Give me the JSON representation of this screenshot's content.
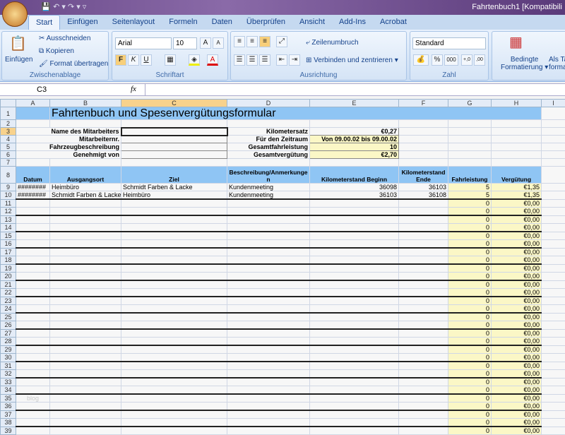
{
  "window": {
    "title": "Fahrtenbuch1  [Kompatibili"
  },
  "tabs": [
    "Start",
    "Einfügen",
    "Seitenlayout",
    "Formeln",
    "Daten",
    "Überprüfen",
    "Ansicht",
    "Add-Ins",
    "Acrobat"
  ],
  "ribbon": {
    "clipboard": {
      "paste": "Einfügen",
      "cut": "Ausschneiden",
      "copy": "Kopieren",
      "format_painter": "Format übertragen",
      "label": "Zwischenablage"
    },
    "font": {
      "name": "Arial",
      "size": "10",
      "bold": "F",
      "italic": "K",
      "underline": "U",
      "grow": "A",
      "shrink": "A",
      "color": "A",
      "label": "Schriftart"
    },
    "alignment": {
      "wrap": "Zeilenumbruch",
      "merge": "Verbinden und zentrieren",
      "label": "Ausrichtung"
    },
    "number": {
      "format": "Standard",
      "percent": "%",
      "thousands": "000",
      "inc": "+,0",
      "dec": ",00",
      "label": "Zahl"
    },
    "styles": {
      "conditional": "Bedingte",
      "conditional2": "Formatierung",
      "table": "Als Ta",
      "table2": "format"
    }
  },
  "formula_bar": {
    "name_box": "C3",
    "fx": "fx",
    "value": ""
  },
  "columns": [
    "A",
    "B",
    "C",
    "D",
    "E",
    "F",
    "G",
    "H",
    "I"
  ],
  "sheet": {
    "title": "Fahrtenbuch und Spesenvergütungsformular",
    "labels_left": [
      "Name des Mitarbeiters",
      "Mitarbeiternr.",
      "Fahrzeugbeschreibung",
      "Genehmigt von"
    ],
    "labels_right": [
      "Kilometersatz",
      "Für den Zeitraum",
      "Gesamtfahrleistung",
      "Gesamtvergütung"
    ],
    "values_right": [
      "€0,27",
      "Von 09.00.02 bis 09.00.02",
      "10",
      "€2,70"
    ],
    "headers": [
      "Datum",
      "Ausgangsort",
      "Ziel",
      "Beschreibung/Anmerkungen",
      "Kilometerstand Beginn",
      "Kilometerstand Ende",
      "Fahrleistung",
      "Vergütung"
    ],
    "rows": [
      [
        "########",
        "Heimbüro",
        "Schmidt Farben & Lacke",
        "Kundenmeeting",
        "36098",
        "36103",
        "5",
        "€1,35"
      ],
      [
        "########",
        "Schmidt Farben & Lacke",
        "Heimbüro",
        "Kundenmeeting",
        "36103",
        "36108",
        "5",
        "€1,35"
      ]
    ],
    "empty_row": {
      "fahrleistung": "0",
      "verguetung": "€0,00"
    },
    "watermark": "blog"
  }
}
